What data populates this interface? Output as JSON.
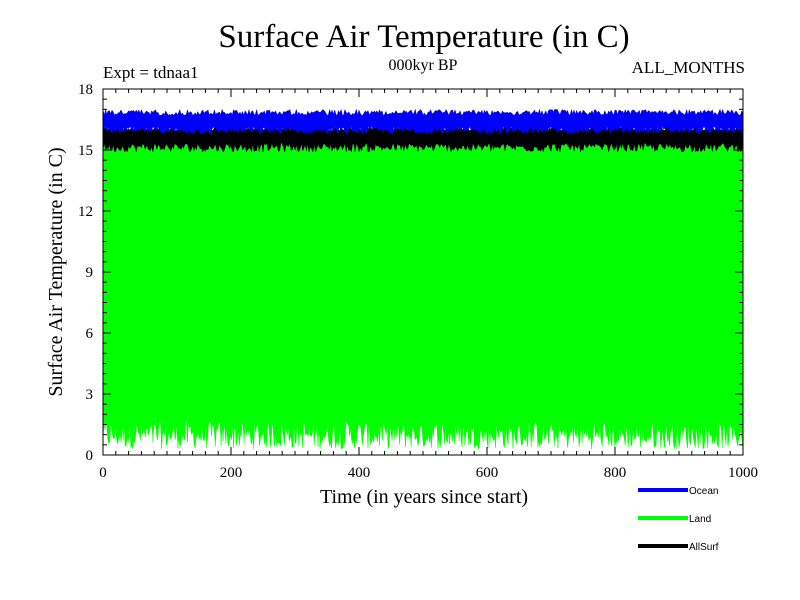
{
  "chart_data": {
    "type": "area",
    "title": "Surface Air Temperature (in C)",
    "subtitle": "000kyr BP",
    "experiment_label": "Expt = tdnaa1",
    "months_label": "ALL_MONTHS",
    "xlabel": "Time (in years since start)",
    "ylabel": "Surface Air Temperature (in C)",
    "xlim": [
      0,
      1000
    ],
    "ylim": [
      0,
      18
    ],
    "x_ticks": [
      0,
      200,
      400,
      600,
      800,
      1000
    ],
    "y_ticks": [
      0,
      3,
      6,
      9,
      12,
      15,
      18
    ],
    "legend_position": "bottom-right, below plot",
    "series": [
      {
        "name": "Ocean",
        "color": "#0000ff",
        "approx_range": [
          15.7,
          17.0
        ],
        "typical_mean": 16.3
      },
      {
        "name": "Land",
        "color": "#00ff00",
        "approx_range": [
          0.3,
          16.0
        ],
        "typical_mean": 8.0
      },
      {
        "name": "AllSurf",
        "color": "#000000",
        "approx_range": [
          14.9,
          16.2
        ],
        "typical_mean": 15.8
      }
    ]
  }
}
